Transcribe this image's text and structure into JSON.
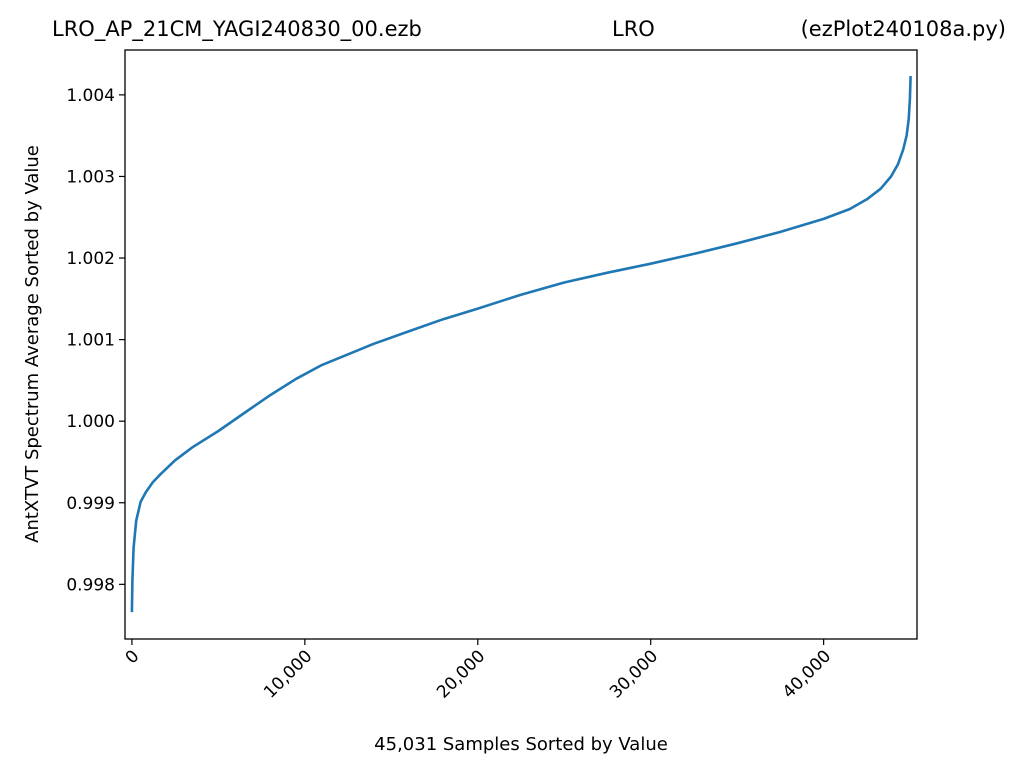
{
  "header": {
    "left": "LRO_AP_21CM_YAGI240830_00.ezb",
    "center": "LRO",
    "right": "(ezPlot240108a.py)"
  },
  "colors": {
    "line": "#1f77b4",
    "axes": "#000000"
  },
  "chart_data": {
    "type": "line",
    "xlabel": "45,031 Samples Sorted by Value",
    "ylabel": "AntXTVT Spectrum Average Sorted by Value",
    "xlim": [
      -400,
      45400
    ],
    "ylim": [
      0.99733,
      1.00455
    ],
    "xticks": [
      0,
      10000,
      20000,
      30000,
      40000
    ],
    "xtick_labels": [
      "0",
      "10,000",
      "20,000",
      "30,000",
      "40,000"
    ],
    "yticks": [
      0.998,
      0.999,
      1.0,
      1.001,
      1.002,
      1.003,
      1.004
    ],
    "ytick_labels": [
      "0.998",
      "0.999",
      "1.000",
      "1.001",
      "1.002",
      "1.003",
      "1.004"
    ],
    "grid": false,
    "series": [
      {
        "x": [
          0,
          30,
          100,
          250,
          500,
          800,
          1200,
          1700,
          2500,
          3500,
          5000,
          6500,
          8000,
          9500,
          11000,
          12500,
          14000,
          16000,
          18000,
          20000,
          22500,
          25000,
          27500,
          30000,
          32500,
          35000,
          37500,
          40000,
          41500,
          42500,
          43300,
          43900,
          44300,
          44600,
          44800,
          44920,
          44990,
          45030
        ],
        "y": [
          0.99766,
          0.99805,
          0.99845,
          0.99878,
          0.99901,
          0.99913,
          0.99925,
          0.99936,
          0.99952,
          0.99968,
          0.99988,
          1.0001,
          1.00032,
          1.00052,
          1.00069,
          1.00082,
          1.00095,
          1.0011,
          1.00125,
          1.00138,
          1.00155,
          1.0017,
          1.00182,
          1.00193,
          1.00205,
          1.00218,
          1.00232,
          1.00248,
          1.0026,
          1.00272,
          1.00285,
          1.003,
          1.00315,
          1.00333,
          1.0035,
          1.0037,
          1.00395,
          1.00423
        ]
      }
    ]
  }
}
